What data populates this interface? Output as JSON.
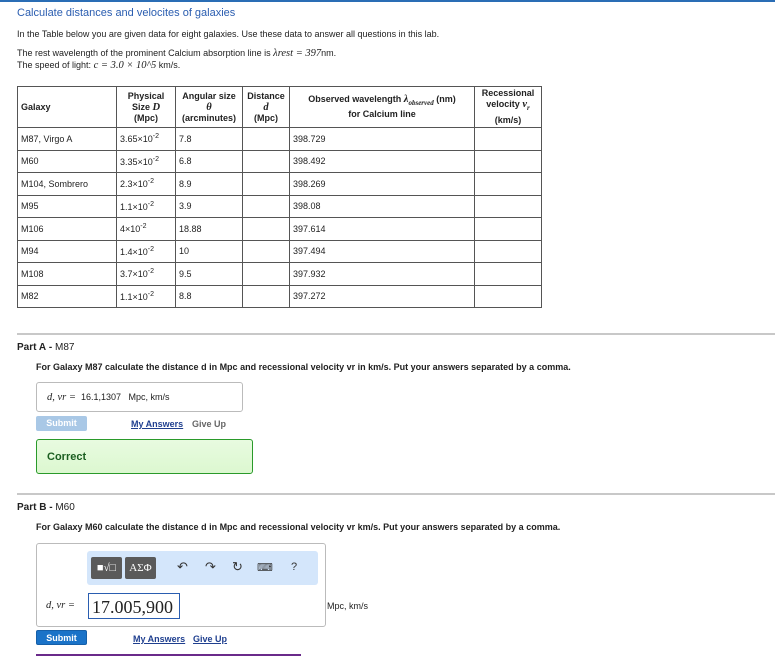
{
  "title": "Calculate distances and velocites of galaxies",
  "intro": "In the Table below you are given data for eight galaxies. Use these data to answer all questions in this lab.",
  "rest_prefix": "The rest wavelength of the prominent Calcium absorption line is",
  "rest_math": "λrest = 397",
  "rest_unit": "nm.",
  "light_prefix": "The speed of light:",
  "light_math": "c = 3.0 × 10^5",
  "light_unit": "km/s.",
  "table": {
    "headers": [
      "Galaxy",
      "Physical Size D (Mpc)",
      "Angular size θ (arcminutes)",
      "Distance d (Mpc)",
      "Observed wavelength λobserved (nm) for Calcium line",
      "Recessional velocity vr (km/s)"
    ],
    "rows": [
      {
        "galaxy": "M87, Virgo A",
        "size": "3.65×10",
        "exp": "-2",
        "angle": "7.8",
        "dist": "",
        "obs": "398.729",
        "vel": ""
      },
      {
        "galaxy": "M60",
        "size": "3.35×10",
        "exp": "-2",
        "angle": "6.8",
        "dist": "",
        "obs": "398.492",
        "vel": ""
      },
      {
        "galaxy": "M104, Sombrero",
        "size": "2.3×10",
        "exp": "-2",
        "angle": "8.9",
        "dist": "",
        "obs": "398.269",
        "vel": ""
      },
      {
        "galaxy": "M95",
        "size": "1.1×10",
        "exp": "-2",
        "angle": "3.9",
        "dist": "",
        "obs": "398.08",
        "vel": ""
      },
      {
        "galaxy": "M106",
        "size": "4×10",
        "exp": "-2",
        "angle": "18.88",
        "dist": "",
        "obs": "397.614",
        "vel": ""
      },
      {
        "galaxy": "M94",
        "size": "1.4×10",
        "exp": "-2",
        "angle": "10",
        "dist": "",
        "obs": "397.494",
        "vel": ""
      },
      {
        "galaxy": "M108",
        "size": "3.7×10",
        "exp": "-2",
        "angle": "9.5",
        "dist": "",
        "obs": "397.932",
        "vel": ""
      },
      {
        "galaxy": "M82",
        "size": "1.1×10",
        "exp": "-2",
        "angle": "8.8",
        "dist": "",
        "obs": "397.272",
        "vel": ""
      }
    ]
  },
  "partA": {
    "label": "Part A",
    "name": "M87",
    "question": "For Galaxy M87 calculate the distance d in Mpc and recessional velocity vr in km/s. Put your answers separated by a comma.",
    "var_label": "d, vr =",
    "answer": "16.1,1307",
    "unit": "Mpc, km/s",
    "submit": "Submit",
    "my_answers": "My Answers",
    "give_up": "Give Up",
    "feedback": "Correct"
  },
  "partB": {
    "label": "Part B",
    "name": "M60",
    "question": "For Galaxy M60 calculate the distance d in Mpc and recessional velocity vr km/s. Put your answers separated by a comma.",
    "var_label": "d, vr =",
    "answer": "17.005,900",
    "unit": "Mpc, km/s",
    "submit": "Submit",
    "my_answers": "My Answers",
    "give_up": "Give Up",
    "toolbar": {
      "templates": "■√□",
      "symbols": "ΑΣΦ",
      "help": "?"
    }
  },
  "colors": {
    "accent": "#2a6db5",
    "submit_disabled": "#a9c8e6",
    "submit_active": "#1a73c8",
    "correct_border": "#2a9a2a"
  }
}
